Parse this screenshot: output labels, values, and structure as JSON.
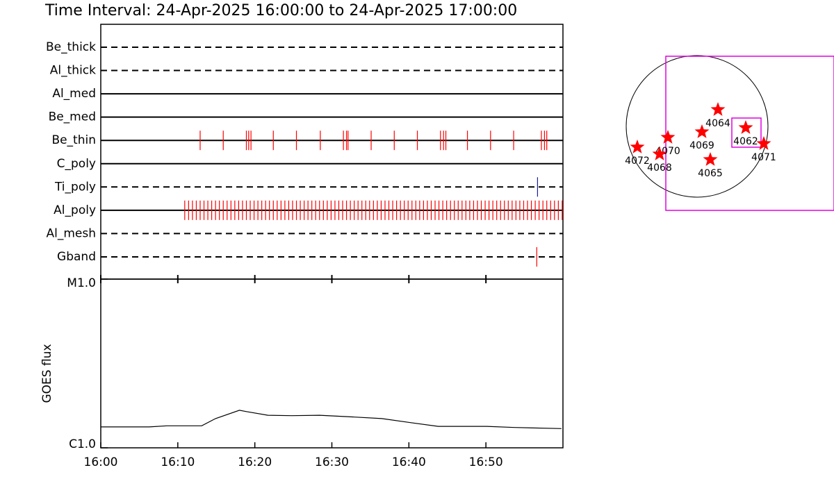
{
  "chart_data": [
    {
      "type": "timeline",
      "title": "Time Interval: 24-Apr-2025 16:00:00 to 24-Apr-2025 17:00:00",
      "xlim": [
        0,
        60
      ],
      "rows": [
        {
          "name": "Be_thick",
          "line": "dashed",
          "color": "#ff0000",
          "events": []
        },
        {
          "name": "Al_thick",
          "line": "dashed",
          "color": "#ff0000",
          "events": []
        },
        {
          "name": "Al_med",
          "line": "solid",
          "color": "#ff0000",
          "events": []
        },
        {
          "name": "Be_med",
          "line": "solid",
          "color": "#ff0000",
          "events": []
        },
        {
          "name": "Be_thin",
          "line": "solid",
          "color": "#ff0000",
          "events": [
            12.9,
            15.9,
            18.9,
            19.2,
            19.5,
            22.4,
            25.4,
            28.5,
            31.5,
            31.9,
            32.1,
            35.1,
            38.1,
            41.1,
            44.1,
            44.5,
            44.8,
            47.6,
            50.6,
            53.6,
            57.2,
            57.6,
            57.9
          ]
        },
        {
          "name": "C_poly",
          "line": "solid",
          "color": "#ff0000",
          "events": []
        },
        {
          "name": "Ti_poly",
          "line": "dashed",
          "color": "#1a1aa0",
          "events": [
            56.7
          ]
        },
        {
          "name": "Al_poly",
          "line": "solid",
          "color": "#ff0000",
          "events": [
            10.9,
            11.4,
            11.9,
            12.4,
            12.9,
            13.4,
            13.9,
            14.4,
            14.9,
            15.4,
            15.9,
            16.4,
            16.9,
            17.4,
            17.9,
            18.4,
            18.9,
            19.4,
            19.9,
            20.4,
            20.9,
            21.4,
            21.9,
            22.4,
            22.9,
            23.4,
            23.9,
            24.4,
            24.9,
            25.4,
            25.9,
            26.4,
            26.9,
            27.4,
            27.9,
            28.4,
            28.9,
            29.4,
            29.9,
            30.4,
            30.9,
            31.4,
            31.9,
            32.4,
            32.9,
            33.4,
            33.9,
            34.4,
            34.9,
            35.4,
            35.9,
            36.4,
            36.9,
            37.4,
            37.9,
            38.4,
            38.9,
            39.4,
            39.9,
            40.4,
            40.9,
            41.4,
            41.9,
            42.4,
            42.9,
            43.4,
            43.9,
            44.4,
            44.9,
            45.4,
            45.9,
            46.4,
            46.9,
            47.4,
            47.9,
            48.4,
            48.9,
            49.4,
            49.9,
            50.4,
            50.9,
            51.4,
            51.9,
            52.4,
            52.9,
            53.4,
            53.9,
            54.4,
            54.9,
            55.4,
            55.9,
            56.4,
            56.9,
            57.4,
            57.9,
            58.4,
            58.9,
            59.4,
            59.9
          ]
        },
        {
          "name": "Al_mesh",
          "line": "dashed",
          "color": "#ff0000",
          "events": []
        },
        {
          "name": "Gband",
          "line": "dashed",
          "color": "#ff0000",
          "events": [
            56.6
          ]
        }
      ]
    },
    {
      "type": "line",
      "ylabel": "GOES flux",
      "xlim": [
        0,
        60
      ],
      "xticks": [
        {
          "value": 0,
          "label": "16:00"
        },
        {
          "value": 10,
          "label": "16:10"
        },
        {
          "value": 20,
          "label": "16:20"
        },
        {
          "value": 30,
          "label": "16:30"
        },
        {
          "value": 40,
          "label": "16:40"
        },
        {
          "value": 50,
          "label": "16:50"
        }
      ],
      "ylim": [
        1e-06,
        1e-05
      ],
      "ylog": true,
      "yticks": [
        {
          "value": 1e-05,
          "label": "M1.0"
        },
        {
          "value": 1e-06,
          "label": "C1.0"
        }
      ],
      "series": [
        {
          "color": "#000000",
          "x": [
            0,
            6.3,
            8.6,
            13.1,
            14.9,
            18.0,
            18.9,
            21.7,
            24.8,
            28.4,
            32.0,
            36.5,
            40.2,
            43.8,
            50.1,
            53.7,
            59.8
          ],
          "values": [
            1.33e-06,
            1.33e-06,
            1.35e-06,
            1.35e-06,
            1.49e-06,
            1.67e-06,
            1.64e-06,
            1.56e-06,
            1.55e-06,
            1.56e-06,
            1.53e-06,
            1.49e-06,
            1.41e-06,
            1.34e-06,
            1.34e-06,
            1.32e-06,
            1.3e-06
          ]
        }
      ]
    }
  ],
  "map": {
    "regions": [
      {
        "label": "4064"
      },
      {
        "label": "4062"
      },
      {
        "label": "4069"
      },
      {
        "label": "4070"
      },
      {
        "label": "4072"
      },
      {
        "label": "4068"
      },
      {
        "label": "4065"
      },
      {
        "label": "4071"
      }
    ]
  }
}
